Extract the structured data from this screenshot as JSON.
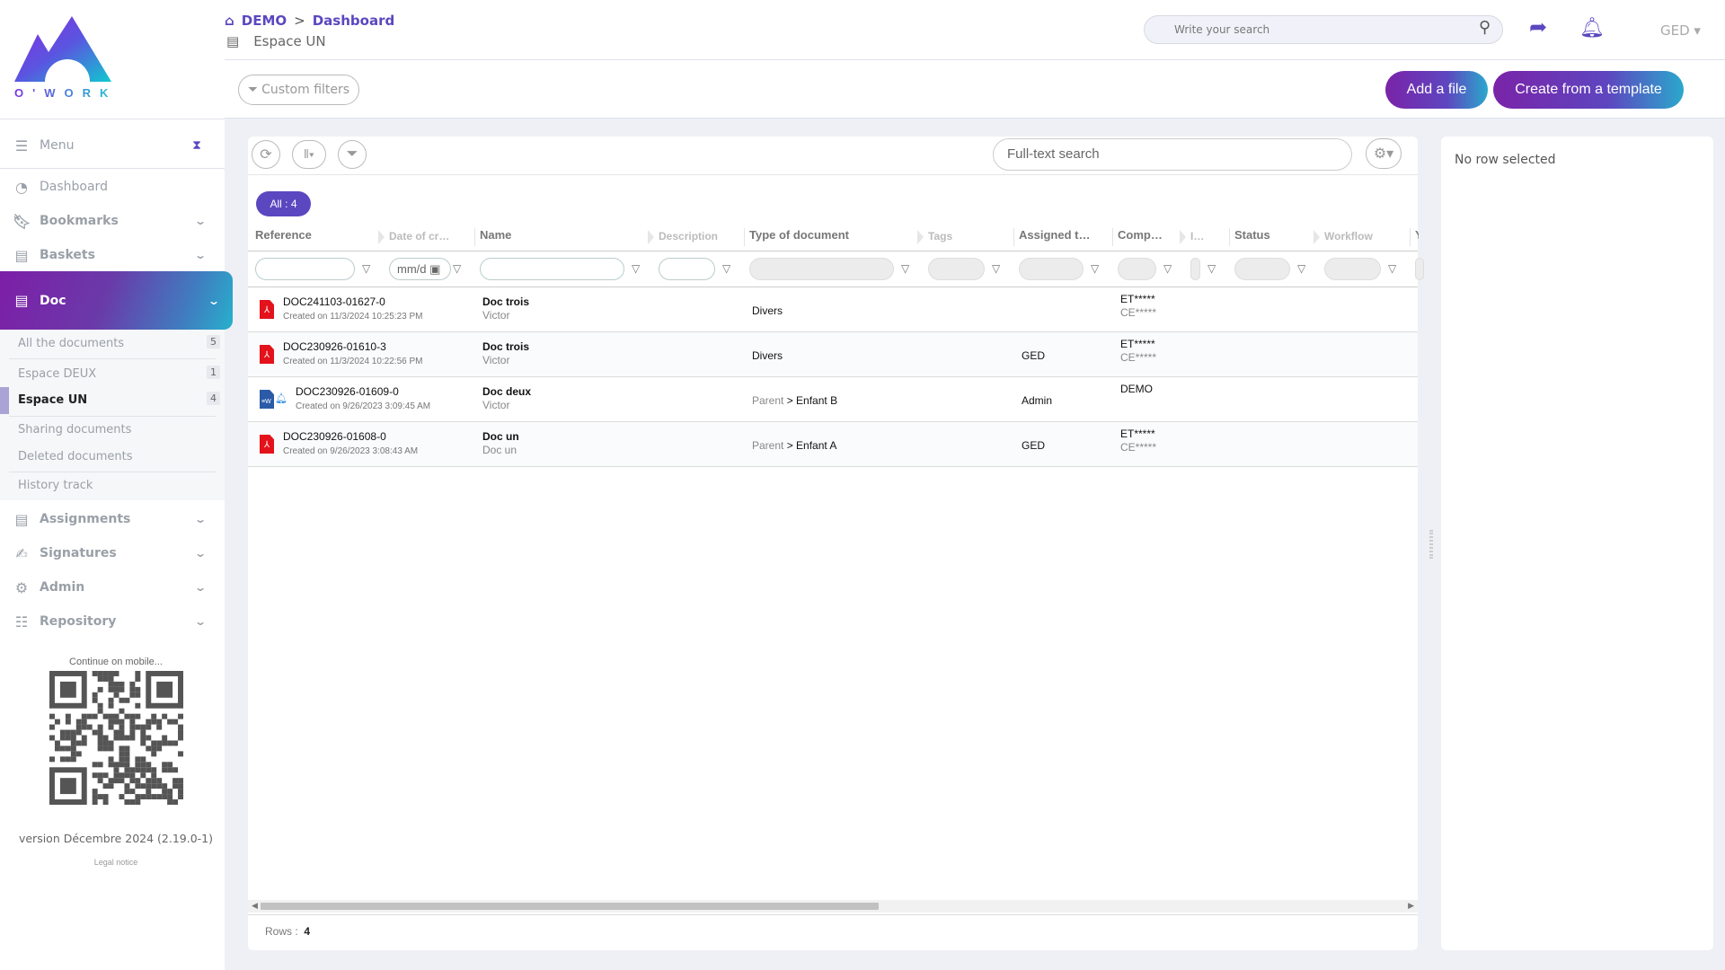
{
  "brand": {
    "name": "O'WORK",
    "colors": {
      "primary": "#5b47c0",
      "gradient_start": "#7a23a8",
      "gradient_end": "#27b0cc"
    }
  },
  "header": {
    "breadcrumb": {
      "home": "DEMO",
      "separator": ">",
      "current": "Dashboard"
    },
    "space": "Espace UN",
    "search_placeholder": "Write your search",
    "user_menu": "GED",
    "custom_filters": "Custom filters",
    "add_file": "Add a file",
    "create_template": "Create from a template"
  },
  "sidebar": {
    "menu_label": "Menu",
    "items": [
      {
        "label": "Dashboard",
        "icon": "dashboard-icon"
      },
      {
        "label": "Bookmarks",
        "icon": "bookmark-icon"
      },
      {
        "label": "Baskets",
        "icon": "book-icon"
      },
      {
        "label": "Doc",
        "icon": "book-icon"
      },
      {
        "label": "Assignments",
        "icon": "book-icon"
      },
      {
        "label": "Signatures",
        "icon": "signature-icon"
      },
      {
        "label": "Admin",
        "icon": "gear-icon"
      },
      {
        "label": "Repository",
        "icon": "list-icon"
      }
    ],
    "doc_sub": [
      {
        "label": "All the documents",
        "count": "5"
      },
      {
        "label": "Espace DEUX",
        "count": "1"
      },
      {
        "label": "Espace UN",
        "count": "4",
        "active": true
      },
      {
        "label": "Sharing documents"
      },
      {
        "label": "Deleted documents"
      },
      {
        "label": "History track"
      }
    ],
    "mobile_label": "Continue on mobile...",
    "version": "version Décembre 2024 (2.19.0-1)",
    "legal": "Legal notice"
  },
  "grid": {
    "fulltext_placeholder": "Full-text search",
    "all_badge": "All : 4",
    "date_placeholder": "mm/d",
    "columns": [
      "Reference",
      "Date of cr…",
      "Name",
      "Description",
      "Type of document",
      "Tags",
      "Assigned t…",
      "Comp…",
      "I…",
      "Status",
      "Workflow",
      "Y"
    ],
    "rows": [
      {
        "icon": "pdf-icon",
        "ref": "DOC241103-01627-0",
        "created": "Created on 11/3/2024 10:25:23 PM",
        "name": "Doc trois",
        "name_sub": "Victor",
        "type_parent": "",
        "type": "Divers",
        "assigned": "",
        "comp1": "ET*****",
        "comp2": "CE*****"
      },
      {
        "icon": "pdf-icon",
        "ref": "DOC230926-01610-3",
        "created": "Created on 11/3/2024 10:22:56 PM",
        "name": "Doc trois",
        "name_sub": "Victor",
        "type_parent": "",
        "type": "Divers",
        "assigned": "GED",
        "comp1": "ET*****",
        "comp2": "CE*****"
      },
      {
        "icon": "word-icon",
        "bell": true,
        "ref": "DOC230926-01609-0",
        "created": "Created on 9/26/2023 3:09:45 AM",
        "name": "Doc deux",
        "name_sub": "Victor",
        "type_parent": "Parent",
        "type": "> Enfant B",
        "assigned": "Admin",
        "comp1": "DEMO",
        "comp2": ""
      },
      {
        "icon": "pdf-icon",
        "ref": "DOC230926-01608-0",
        "created": "Created on 9/26/2023 3:08:43 AM",
        "name": "Doc un",
        "name_sub": "Doc un",
        "type_parent": "Parent",
        "type": "> Enfant A",
        "assigned": "GED",
        "comp1": "ET*****",
        "comp2": "CE*****"
      }
    ],
    "rows_label": "Rows :",
    "rows_count": "4",
    "scroll_fraction": 0.54
  },
  "detail": {
    "empty": "No row selected"
  }
}
